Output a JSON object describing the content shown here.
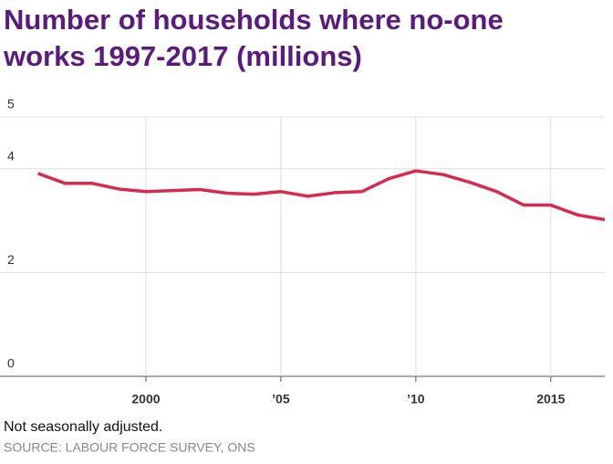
{
  "chart_data": {
    "type": "line",
    "title_lines": [
      "Number of households where no-one",
      "works 1997-2017 (millions)"
    ],
    "x": [
      1996,
      1997,
      1998,
      1999,
      2000,
      2001,
      2002,
      2003,
      2004,
      2005,
      2006,
      2007,
      2008,
      2009,
      2010,
      2011,
      2012,
      2013,
      2014,
      2015,
      2016,
      2017
    ],
    "series": [
      {
        "color": "#d92a4d",
        "values": [
          3.91,
          3.72,
          3.72,
          3.61,
          3.56,
          3.58,
          3.6,
          3.53,
          3.51,
          3.56,
          3.47,
          3.54,
          3.56,
          3.81,
          3.96,
          3.89,
          3.74,
          3.56,
          3.3,
          3.3,
          3.11,
          3.02
        ]
      }
    ],
    "xlim": [
      1995,
      2017
    ],
    "xticks": [
      2000,
      {
        "value": 2005,
        "label": "’05"
      },
      {
        "value": 2010,
        "label": "’10"
      },
      2015
    ],
    "ylim": [
      0,
      5
    ],
    "yticks": [
      0,
      2,
      4,
      5
    ],
    "grid": true,
    "note": "Not seasonally adjusted.",
    "source": "SOURCE: LABOUR FORCE SURVEY, ONS"
  }
}
